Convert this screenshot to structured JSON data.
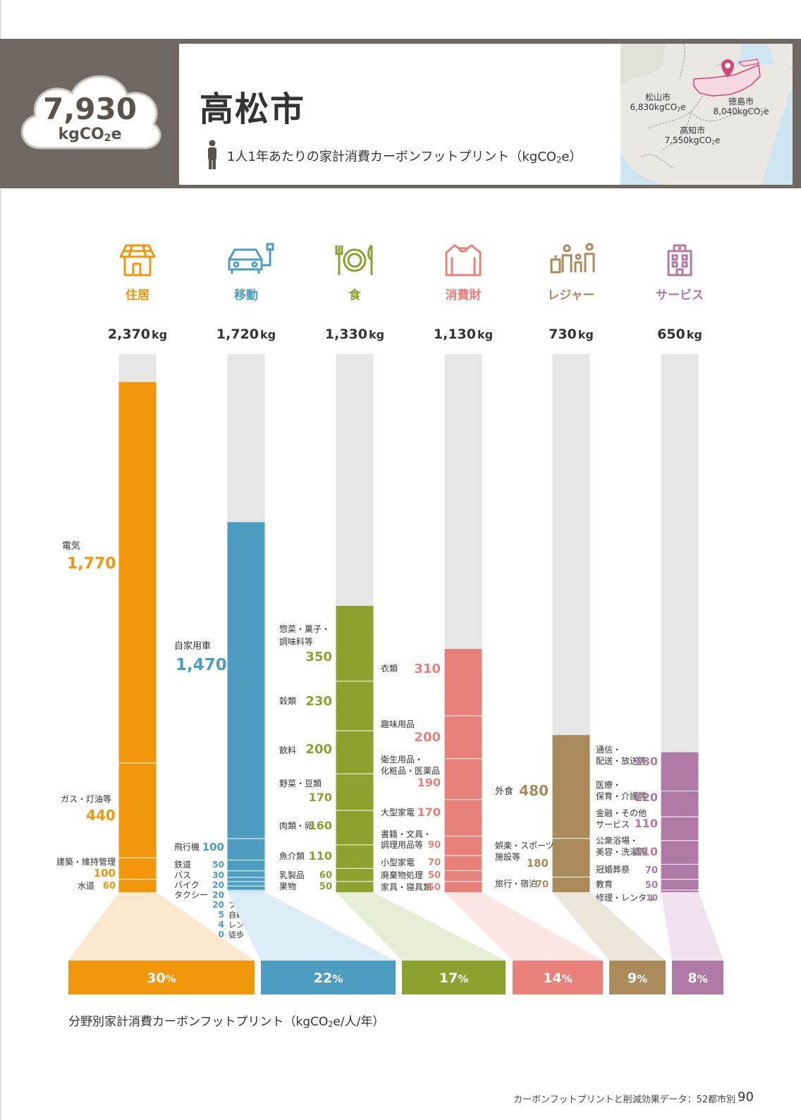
{
  "header": {
    "total_value": "7,930",
    "total_unit": "kgCO",
    "total_unit_sub": "2",
    "total_unit_tail": "e",
    "city": "高松市",
    "subtitle": "1人1年あたりの家計消費カーボンフットプリント（kgCO",
    "subtitle_sub": "2",
    "subtitle_tail": "e）"
  },
  "map": {
    "cities": [
      {
        "name": "松山市",
        "value": "6,830kgCO",
        "sub": "2",
        "tail": "e"
      },
      {
        "name": "徳島市",
        "value": "8,040kgCO",
        "sub": "2",
        "tail": "e"
      },
      {
        "name": "高知市",
        "value": "7,550kgCO",
        "sub": "2",
        "tail": "e"
      }
    ],
    "pin_color": "#d6457a"
  },
  "chart_data": {
    "type": "bar",
    "subtype": "stacked-column",
    "ylim": [
      0,
      2500
    ],
    "categories": [
      {
        "name": "住居",
        "icon": "house-icon",
        "total": "2,370",
        "unit": "kg",
        "percent": "30",
        "pct_sign": "%",
        "color": "#f2960b",
        "light": "#fde8cf",
        "items": [
          {
            "label": "電気",
            "value": 1770,
            "text": "1,770"
          },
          {
            "label": "ガス・灯油等",
            "value": 440,
            "text": "440"
          },
          {
            "label": "建築・維持管理",
            "value": 100,
            "text": "100"
          },
          {
            "label": "水道",
            "value": 60,
            "text": "60"
          }
        ]
      },
      {
        "name": "移動",
        "icon": "car-icon",
        "total": "1,720",
        "unit": "kg",
        "percent": "22",
        "pct_sign": "%",
        "color": "#4d9dc0",
        "light": "#dcedf7",
        "items": [
          {
            "label": "自家用車",
            "value": 1470,
            "text": "1,470"
          },
          {
            "label": "飛行機",
            "value": 100,
            "text": "100"
          },
          {
            "label": "鉄道",
            "value": 50,
            "text": "50"
          },
          {
            "label": "バス",
            "value": 30,
            "text": "30"
          },
          {
            "label": "バイク",
            "value": 20,
            "text": "20"
          },
          {
            "label": "タクシー",
            "value": 20,
            "text": "20"
          },
          {
            "label": "フェリー",
            "value": 20,
            "text": "20"
          },
          {
            "label": "自転車",
            "value": 5,
            "text": "5"
          },
          {
            "label": "レンタカー",
            "value": 4,
            "text": "4"
          },
          {
            "label": "徒歩",
            "value": 0,
            "text": "0"
          }
        ]
      },
      {
        "name": "食",
        "icon": "dining-icon",
        "total": "1,330",
        "unit": "kg",
        "percent": "17",
        "pct_sign": "%",
        "color": "#8ba22f",
        "light": "#e6efd6",
        "items": [
          {
            "label": "惣菜・菓子・調味料等",
            "value": 350,
            "text": "350"
          },
          {
            "label": "穀類",
            "value": 230,
            "text": "230"
          },
          {
            "label": "飲料",
            "value": 200,
            "text": "200"
          },
          {
            "label": "野菜・豆類",
            "value": 170,
            "text": "170"
          },
          {
            "label": "肉類・卵",
            "value": 160,
            "text": "160"
          },
          {
            "label": "魚介類",
            "value": 110,
            "text": "110"
          },
          {
            "label": "乳製品",
            "value": 60,
            "text": "60"
          },
          {
            "label": "果物",
            "value": 50,
            "text": "50"
          }
        ]
      },
      {
        "name": "消費財",
        "icon": "sweater-icon",
        "total": "1,130",
        "unit": "kg",
        "percent": "14",
        "pct_sign": "%",
        "color": "#e9817b",
        "light": "#fbe6e3",
        "items": [
          {
            "label": "衣類",
            "value": 310,
            "text": "310"
          },
          {
            "label": "趣味用品",
            "value": 200,
            "text": "200"
          },
          {
            "label": "衛生用品・化粧品・医薬品",
            "value": 190,
            "text": "190"
          },
          {
            "label": "大型家電",
            "value": 170,
            "text": "170"
          },
          {
            "label": "書籍・文具・調理用品等",
            "value": 90,
            "text": "90"
          },
          {
            "label": "小型家電",
            "value": 70,
            "text": "70"
          },
          {
            "label": "廃棄物処理",
            "value": 50,
            "text": "50"
          },
          {
            "label": "家具・寝具類",
            "value": 50,
            "text": "50"
          }
        ]
      },
      {
        "name": "レジャー",
        "icon": "family-travel-icon",
        "total": "730",
        "unit": "kg",
        "percent": "9",
        "pct_sign": "%",
        "color": "#ab8a5b",
        "light": "#ece5da",
        "items": [
          {
            "label": "外食",
            "value": 480,
            "text": "480"
          },
          {
            "label": "娯楽・スポーツ施設等",
            "value": 180,
            "text": "180"
          },
          {
            "label": "旅行・宿泊",
            "value": 70,
            "text": "70"
          }
        ]
      },
      {
        "name": "サービス",
        "icon": "building-icon",
        "total": "650",
        "unit": "kg",
        "percent": "8",
        "pct_sign": "%",
        "color": "#b07aa6",
        "light": "#f0e2ee",
        "items": [
          {
            "label": "通信・配送・放送等",
            "value": 180,
            "text": "180"
          },
          {
            "label": "医療・保育・介護等",
            "value": 120,
            "text": "120"
          },
          {
            "label": "金融・その他サービス",
            "value": 110,
            "text": "110"
          },
          {
            "label": "公衆浴場・美容・洗濯等",
            "value": 110,
            "text": "110"
          },
          {
            "label": "冠婚葬祭",
            "value": 70,
            "text": "70"
          },
          {
            "label": "教育",
            "value": 50,
            "text": "50"
          },
          {
            "label": "修理・レンタル",
            "value": 10,
            "text": "10"
          }
        ]
      }
    ]
  },
  "caption": "分野別家計消費カーボンフットプリント（kgCO",
  "caption_sub": "2",
  "caption_tail": "e/人/年）",
  "footer": "カーボンフットプリントと削減効果データ：52都市別",
  "page_number": "90"
}
